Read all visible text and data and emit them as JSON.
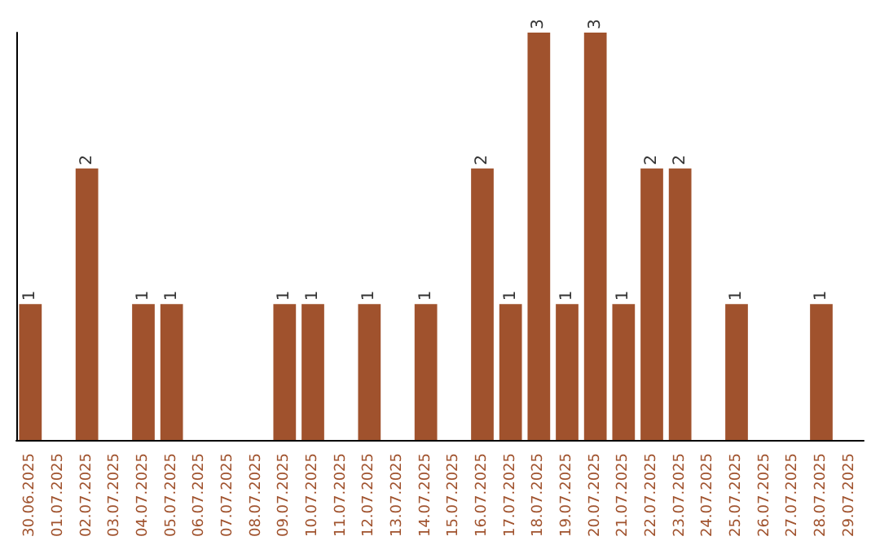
{
  "chart_data": {
    "type": "bar",
    "categories": [
      "30.06.2025",
      "01.07.2025",
      "02.07.2025",
      "03.07.2025",
      "04.07.2025",
      "05.07.2025",
      "06.07.2025",
      "07.07.2025",
      "08.07.2025",
      "09.07.2025",
      "10.07.2025",
      "11.07.2025",
      "12.07.2025",
      "13.07.2025",
      "14.07.2025",
      "15.07.2025",
      "16.07.2025",
      "17.07.2025",
      "18.07.2025",
      "19.07.2025",
      "20.07.2025",
      "21.07.2025",
      "22.07.2025",
      "23.07.2025",
      "24.07.2025",
      "25.07.2025",
      "26.07.2025",
      "27.07.2025",
      "28.07.2025",
      "29.07.2025"
    ],
    "values": [
      1,
      0,
      2,
      0,
      1,
      1,
      0,
      0,
      0,
      1,
      1,
      0,
      1,
      0,
      1,
      0,
      2,
      1,
      3,
      1,
      3,
      1,
      2,
      2,
      0,
      1,
      0,
      0,
      1,
      0
    ],
    "value_labels": [
      "1",
      null,
      "2",
      null,
      "1",
      "1",
      null,
      null,
      null,
      "1",
      "1",
      null,
      "1",
      null,
      "1",
      null,
      "2",
      "1",
      "3",
      "1",
      "3",
      "1",
      "2",
      "2",
      null,
      "1",
      null,
      null,
      "1",
      null
    ],
    "color": "#a0522d",
    "ylim": [
      0,
      3
    ],
    "tick_labels": "x",
    "grid": false
  }
}
